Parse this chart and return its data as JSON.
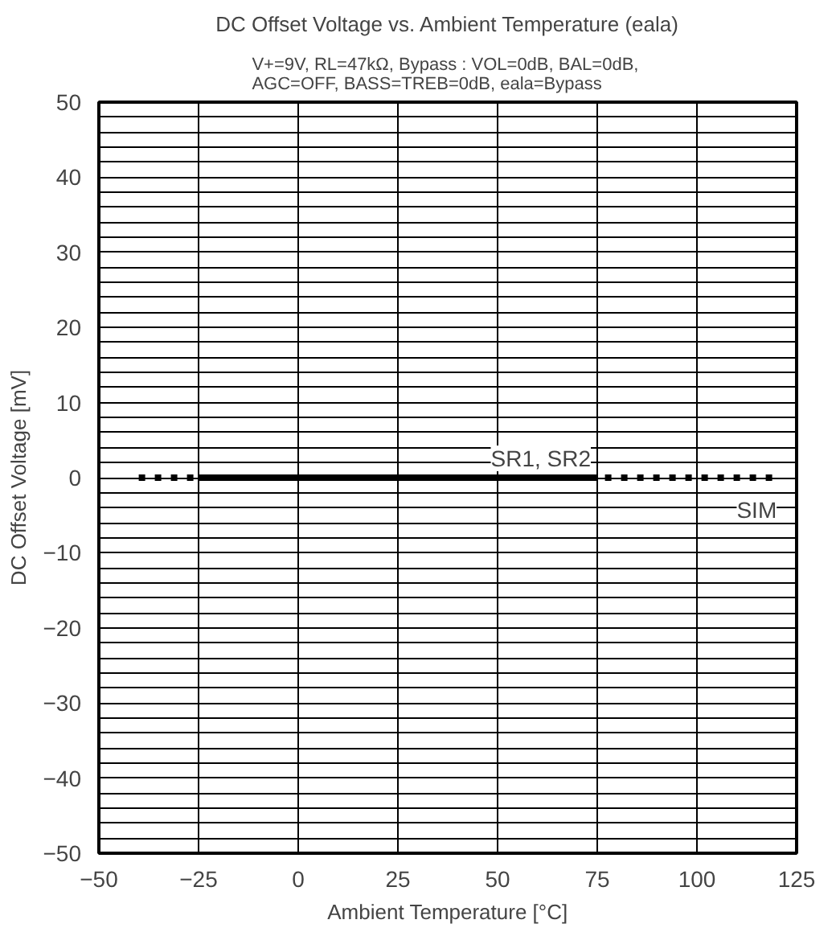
{
  "chart_data": {
    "type": "line",
    "title": "DC Offset Voltage vs. Ambient Temperature (eala)",
    "subtitle": "V+=9V, RL=47kΩ,  Bypass : VOL=0dB, BAL=0dB,\nAGC=OFF, BASS=TREB=0dB, eala=Bypass",
    "xlabel": "Ambient Temperature [°C]",
    "ylabel": "DC Offset Voltage [mV]",
    "series": [
      {
        "name": "SIM",
        "color": "#000000",
        "line_style": "dashed",
        "x": [
          -40,
          120
        ],
        "values": [
          0,
          0
        ]
      },
      {
        "name": "SR1, SR2",
        "color": "#000000",
        "line_style": "solid",
        "x": [
          -25,
          75
        ],
        "values": [
          0,
          0
        ]
      }
    ],
    "xlim": [
      -50,
      125
    ],
    "xticks": [
      -50,
      -25,
      0,
      25,
      50,
      75,
      100,
      125
    ],
    "ylim": [
      -50,
      50
    ],
    "yticks": [
      -50,
      -40,
      -30,
      -20,
      -10,
      0,
      10,
      20,
      30,
      40,
      50
    ],
    "grid": true,
    "marker": "none"
  }
}
